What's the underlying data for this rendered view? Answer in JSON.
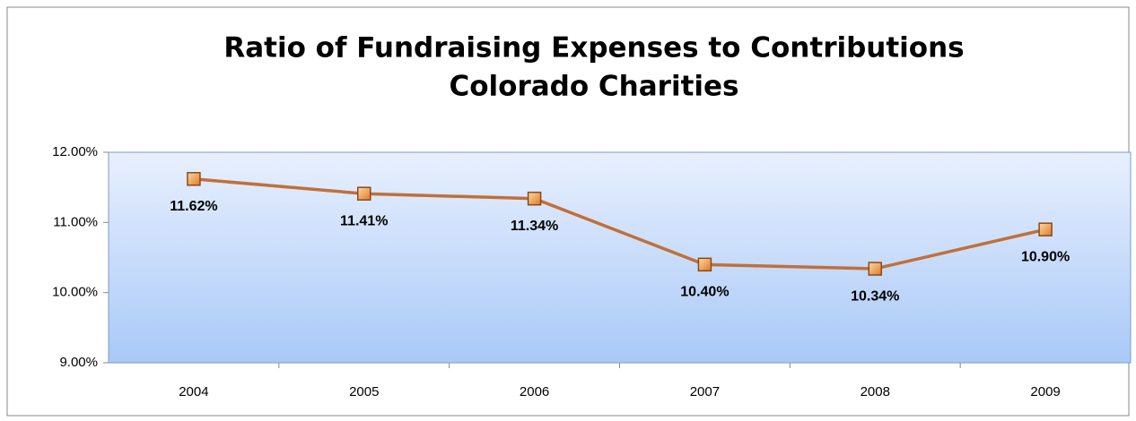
{
  "chart_data": {
    "type": "line",
    "title_lines": [
      "Ratio of Fundraising Expenses to Contributions",
      "Colorado Charities"
    ],
    "categories": [
      "2004",
      "2005",
      "2006",
      "2007",
      "2008",
      "2009"
    ],
    "values": [
      11.62,
      11.41,
      11.34,
      10.4,
      10.34,
      10.9
    ],
    "value_labels": [
      "11.62%",
      "11.41%",
      "11.34%",
      "10.40%",
      "10.34%",
      "10.90%"
    ],
    "color": "#c0703a",
    "ylim": [
      9,
      12
    ],
    "yticks": [
      {
        "value": 9,
        "label": "9.00%"
      },
      {
        "value": 10,
        "label": "10.00%"
      },
      {
        "value": 11,
        "label": "11.00%"
      },
      {
        "value": 12,
        "label": "12.00%"
      }
    ]
  }
}
